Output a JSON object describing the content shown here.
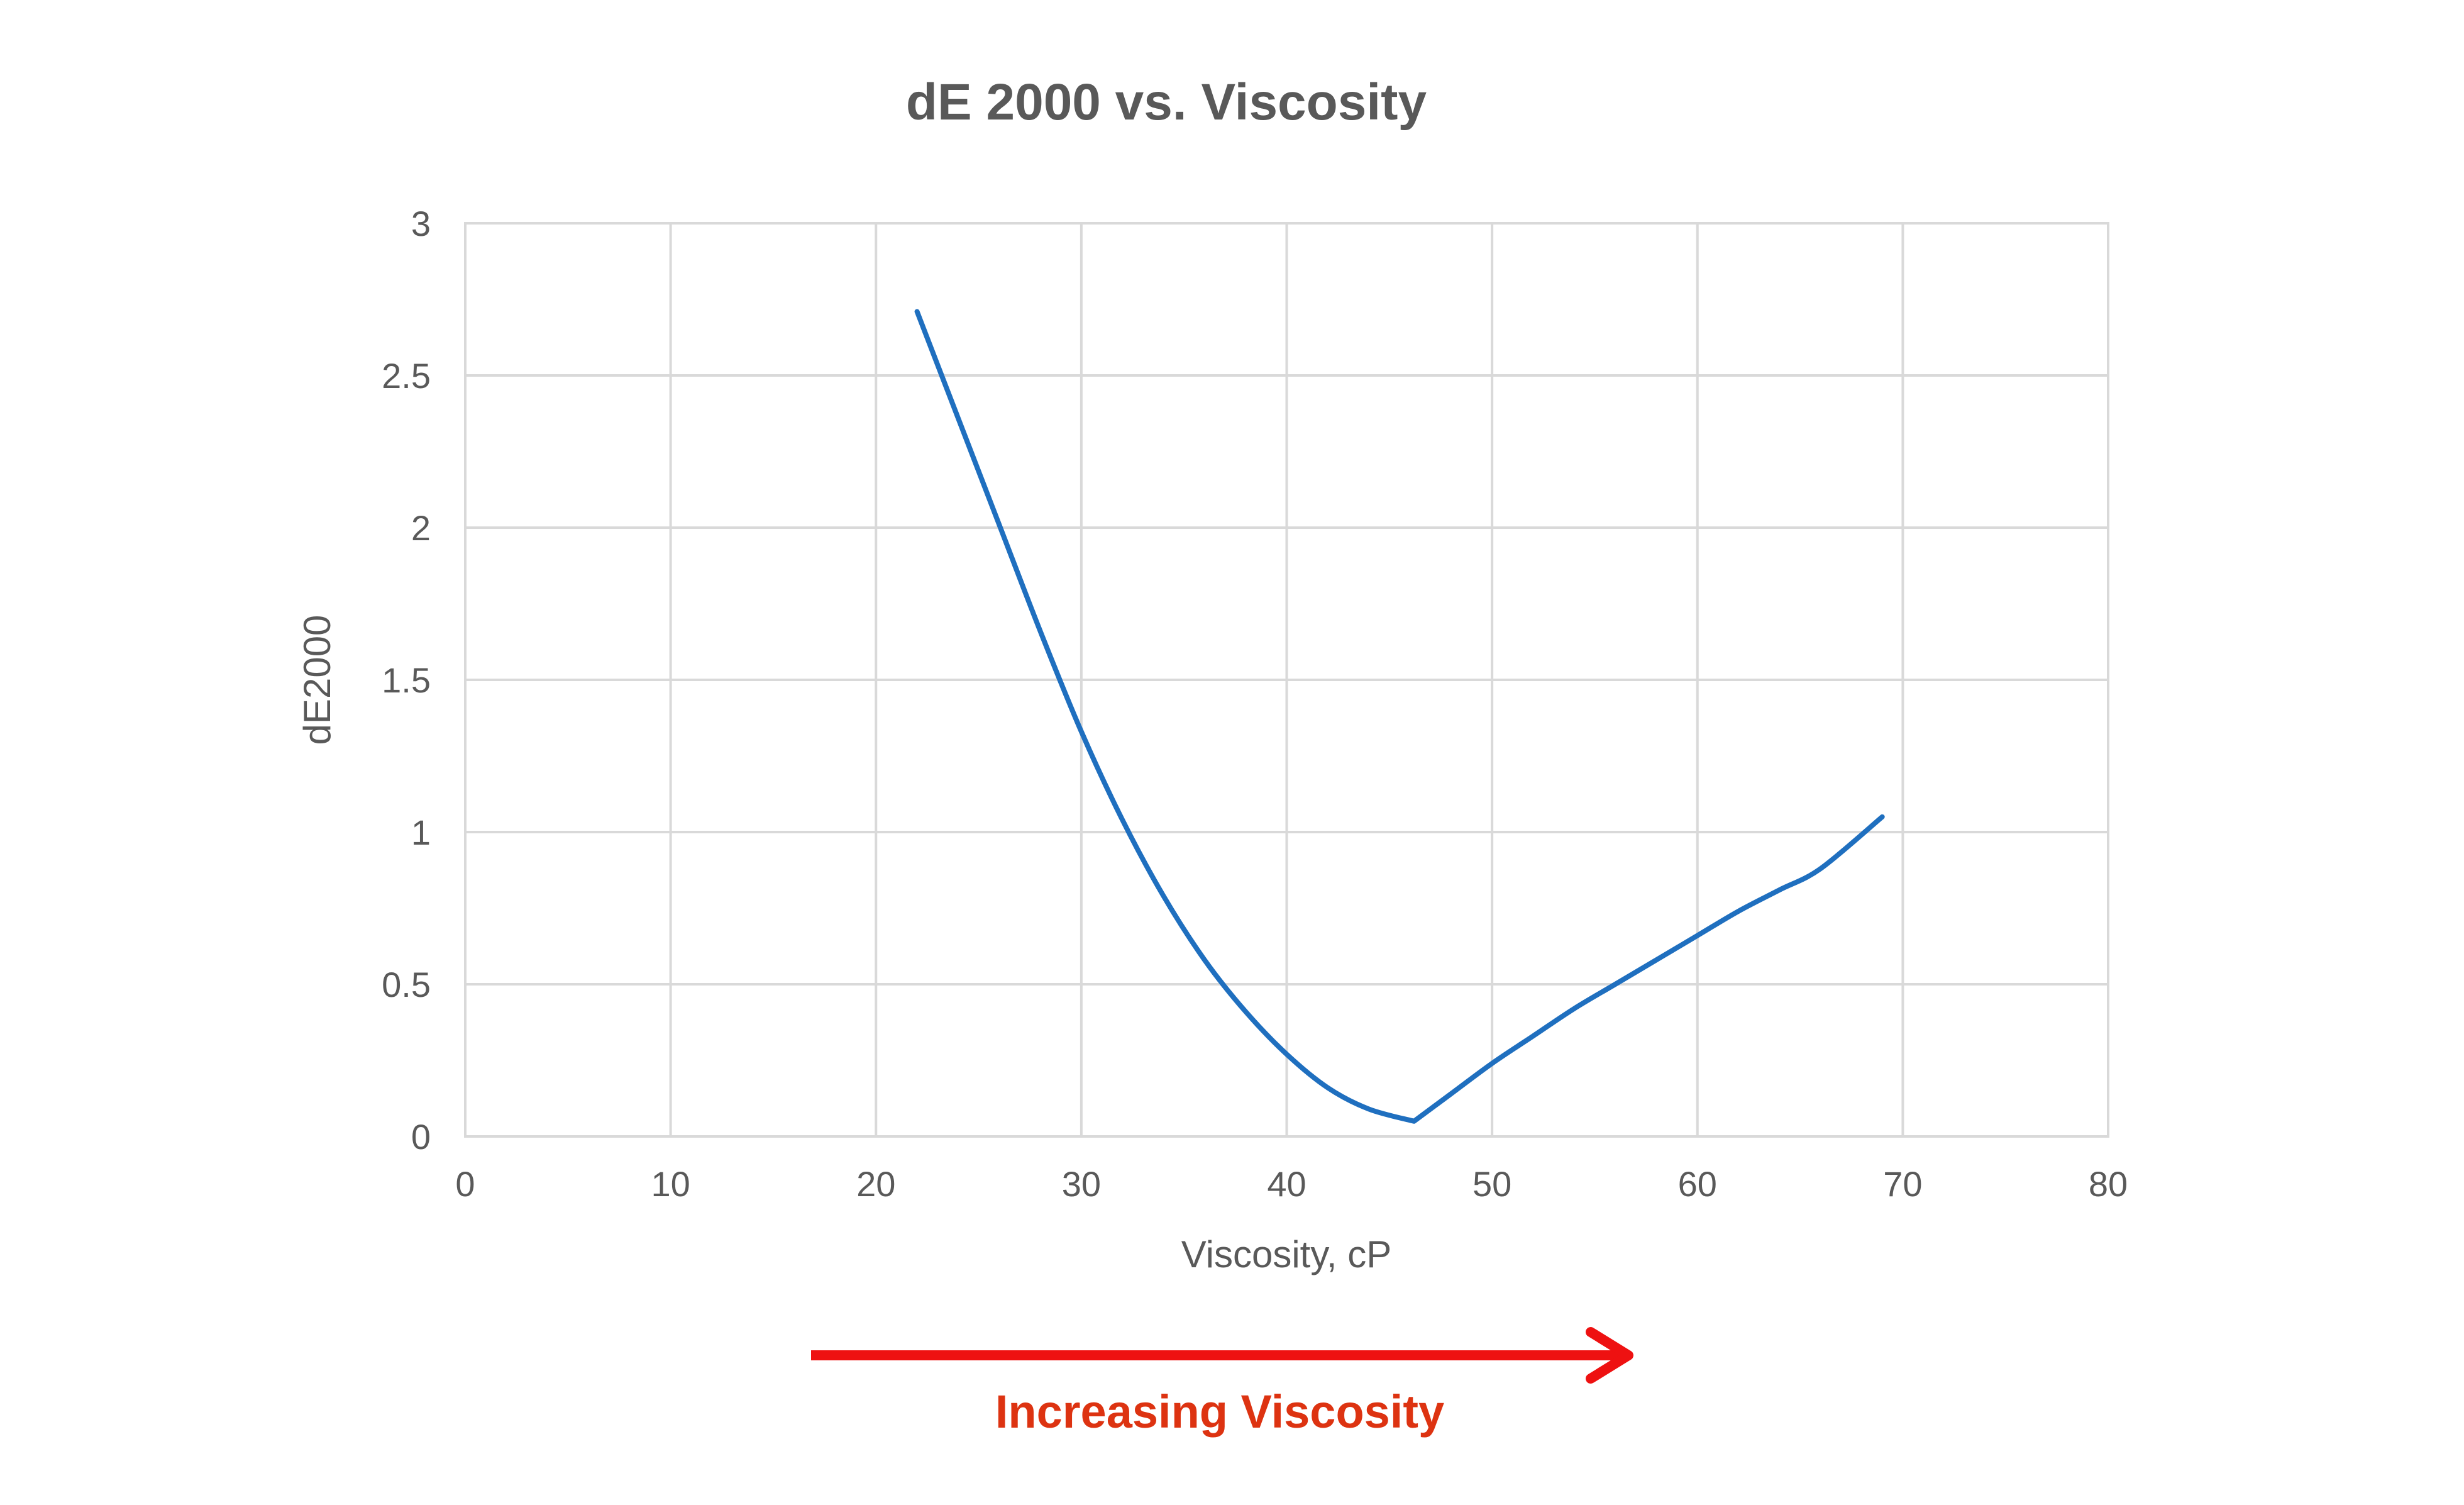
{
  "chart_data": {
    "type": "line",
    "title": "dE 2000 vs. Viscosity",
    "xlabel": "Viscosity, cP",
    "ylabel": "dE2000",
    "xlim": [
      0,
      80
    ],
    "ylim": [
      0,
      3
    ],
    "x_ticks": [
      "0",
      "10",
      "20",
      "30",
      "40",
      "50",
      "60",
      "70",
      "80"
    ],
    "y_ticks": [
      "0",
      "0.5",
      "1",
      "1.5",
      "2",
      "2.5",
      "3"
    ],
    "grid": true,
    "legend": "none",
    "series": [
      {
        "color": "#1f6fbf",
        "x": [
          22,
          24,
          26,
          28,
          30,
          32,
          34,
          36,
          38,
          40,
          42,
          44,
          46.2,
          48,
          50,
          52,
          54,
          56,
          58,
          60,
          62,
          64,
          66,
          69
        ],
        "y": [
          2.71,
          2.36,
          2.01,
          1.66,
          1.33,
          1.04,
          0.79,
          0.58,
          0.41,
          0.27,
          0.16,
          0.09,
          0.05,
          0.14,
          0.24,
          0.33,
          0.42,
          0.5,
          0.58,
          0.66,
          0.74,
          0.81,
          0.88,
          1.05
        ]
      }
    ]
  },
  "annotation": {
    "arrow_color": "#ee1111",
    "text": "Increasing Viscosity",
    "text_color": "#dd3311"
  }
}
